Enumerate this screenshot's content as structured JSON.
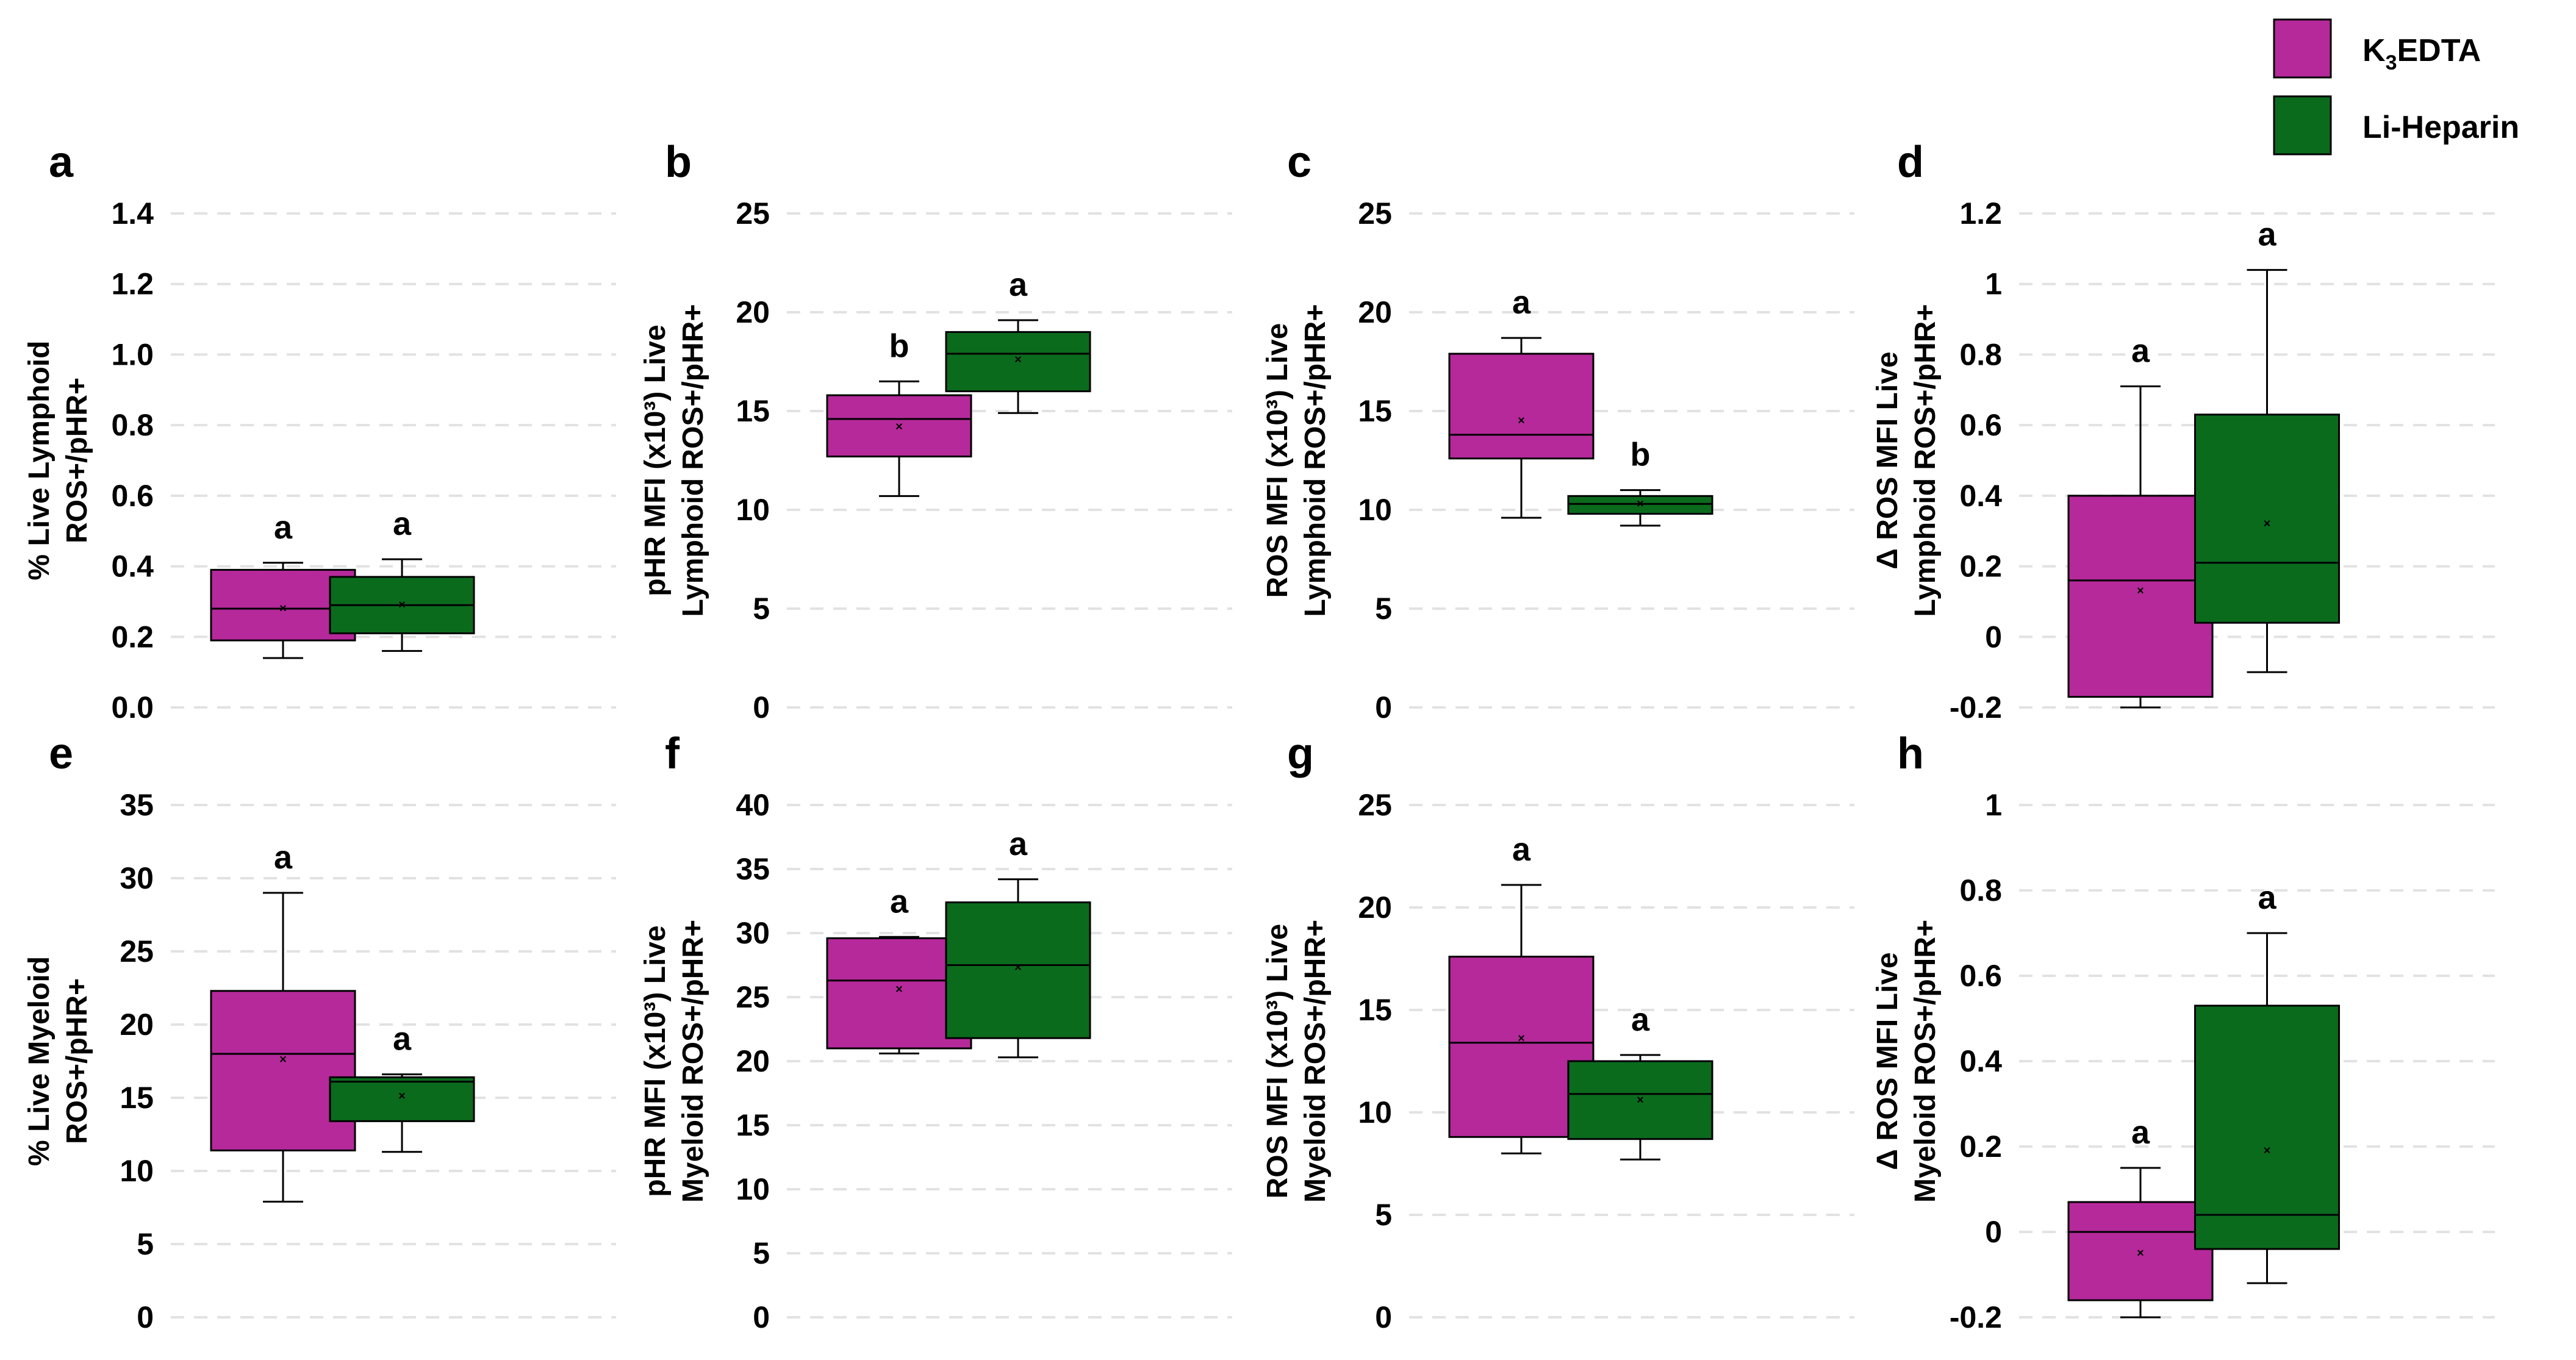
{
  "legend": {
    "items": [
      {
        "label": "K",
        "sub": "3",
        "rest": "EDTA",
        "color": "#B5299A"
      },
      {
        "label": "Li-Heparin",
        "color": "#0B6B1D"
      }
    ]
  },
  "chart_data": [
    {
      "panel": "a",
      "type": "box",
      "ylabel": [
        "% Live Lymphoid",
        "ROS+/pHR+"
      ],
      "ylim": [
        0,
        1.4
      ],
      "ticks": [
        0,
        0.2,
        0.4,
        0.6,
        0.8,
        1.0,
        1.2,
        1.4
      ],
      "tick_decimals": 1,
      "series": [
        {
          "name": "K3EDTA",
          "min": 0.14,
          "q1": 0.19,
          "median": 0.28,
          "q3": 0.39,
          "max": 0.41,
          "mean": 0.28,
          "sig": "a"
        },
        {
          "name": "Li-Heparin",
          "min": 0.16,
          "q1": 0.21,
          "median": 0.29,
          "q3": 0.37,
          "max": 0.42,
          "mean": 0.29,
          "sig": "a"
        }
      ]
    },
    {
      "panel": "b",
      "type": "box",
      "ylabel": [
        "pHR MFI (x10³) Live",
        "Lymphoid ROS+/pHR+"
      ],
      "ylim": [
        0,
        25
      ],
      "ticks": [
        0,
        5,
        10,
        15,
        20,
        25
      ],
      "tick_decimals": 0,
      "series": [
        {
          "name": "K3EDTA",
          "min": 10.7,
          "q1": 12.7,
          "median": 14.6,
          "q3": 15.8,
          "max": 16.5,
          "mean": 14.2,
          "sig": "b"
        },
        {
          "name": "Li-Heparin",
          "min": 14.9,
          "q1": 16.0,
          "median": 17.9,
          "q3": 19.0,
          "max": 19.6,
          "mean": 17.6,
          "sig": "a"
        }
      ]
    },
    {
      "panel": "c",
      "type": "box",
      "ylabel": [
        "ROS MFI (x10³) Live",
        "Lymphoid ROS+/pHR+"
      ],
      "ylim": [
        0,
        25
      ],
      "ticks": [
        0,
        5,
        10,
        15,
        20,
        25
      ],
      "tick_decimals": 0,
      "series": [
        {
          "name": "K3EDTA",
          "min": 9.6,
          "q1": 12.6,
          "median": 13.8,
          "q3": 17.9,
          "max": 18.7,
          "mean": 14.5,
          "sig": "a"
        },
        {
          "name": "Li-Heparin",
          "min": 9.2,
          "q1": 9.8,
          "median": 10.3,
          "q3": 10.7,
          "max": 11.0,
          "mean": 10.3,
          "sig": "b"
        }
      ]
    },
    {
      "panel": "d",
      "type": "box",
      "ylabel": [
        "Δ ROS MFI Live",
        "Lymphoid ROS+/pHR+"
      ],
      "ylim": [
        -0.2,
        1.2
      ],
      "ticks": [
        -0.2,
        0,
        0.2,
        0.4,
        0.6,
        0.8,
        1,
        1.2
      ],
      "tick_decimals": -1,
      "series": [
        {
          "name": "K3EDTA",
          "min": -0.2,
          "q1": -0.17,
          "median": 0.16,
          "q3": 0.4,
          "max": 0.71,
          "mean": 0.13,
          "sig": "a"
        },
        {
          "name": "Li-Heparin",
          "min": -0.1,
          "q1": 0.04,
          "median": 0.21,
          "q3": 0.63,
          "max": 1.04,
          "mean": 0.32,
          "sig": "a"
        }
      ]
    },
    {
      "panel": "e",
      "type": "box",
      "ylabel": [
        "% Live Myeloid",
        "ROS+/pHR+"
      ],
      "ylim": [
        0,
        35
      ],
      "ticks": [
        0,
        5,
        10,
        15,
        20,
        25,
        30,
        35
      ],
      "tick_decimals": 0,
      "series": [
        {
          "name": "K3EDTA",
          "min": 7.9,
          "q1": 11.4,
          "median": 18.0,
          "q3": 22.3,
          "max": 29.0,
          "mean": 17.6,
          "sig": "a"
        },
        {
          "name": "Li-Heparin",
          "min": 11.3,
          "q1": 13.4,
          "median": 16.1,
          "q3": 16.4,
          "max": 16.6,
          "mean": 15.1,
          "sig": "a"
        }
      ]
    },
    {
      "panel": "f",
      "type": "box",
      "ylabel": [
        "pHR MFI (x10³) Live",
        "Myeloid ROS+/pHR+"
      ],
      "ylim": [
        0,
        40
      ],
      "ticks": [
        0,
        5,
        10,
        15,
        20,
        25,
        30,
        35,
        40
      ],
      "tick_decimals": 0,
      "series": [
        {
          "name": "K3EDTA",
          "min": 20.6,
          "q1": 21.0,
          "median": 26.3,
          "q3": 29.6,
          "max": 29.7,
          "mean": 25.6,
          "sig": "a"
        },
        {
          "name": "Li-Heparin",
          "min": 20.3,
          "q1": 21.8,
          "median": 27.5,
          "q3": 32.4,
          "max": 34.2,
          "mean": 27.3,
          "sig": "a"
        }
      ]
    },
    {
      "panel": "g",
      "type": "box",
      "ylabel": [
        "ROS MFI (x10³) Live",
        "Myeloid ROS+/pHR+"
      ],
      "ylim": [
        0,
        25
      ],
      "ticks": [
        0,
        5,
        10,
        15,
        20,
        25
      ],
      "tick_decimals": 0,
      "series": [
        {
          "name": "K3EDTA",
          "min": 8.0,
          "q1": 8.8,
          "median": 13.4,
          "q3": 17.6,
          "max": 21.1,
          "mean": 13.6,
          "sig": "a"
        },
        {
          "name": "Li-Heparin",
          "min": 7.7,
          "q1": 8.7,
          "median": 10.9,
          "q3": 12.5,
          "max": 12.8,
          "mean": 10.6,
          "sig": "a"
        }
      ]
    },
    {
      "panel": "h",
      "type": "box",
      "ylabel": [
        "Δ ROS MFI Live",
        "Myeloid ROS+/pHR+"
      ],
      "ylim": [
        -0.2,
        1
      ],
      "ticks": [
        -0.2,
        0,
        0.2,
        0.4,
        0.6,
        0.8,
        1
      ],
      "tick_decimals": -1,
      "series": [
        {
          "name": "K3EDTA",
          "min": -0.2,
          "q1": -0.16,
          "median": 0.0,
          "q3": 0.07,
          "max": 0.15,
          "mean": -0.05,
          "sig": "a"
        },
        {
          "name": "Li-Heparin",
          "min": -0.12,
          "q1": -0.04,
          "median": 0.04,
          "q3": 0.53,
          "max": 0.7,
          "mean": 0.19,
          "sig": "a"
        }
      ]
    }
  ]
}
